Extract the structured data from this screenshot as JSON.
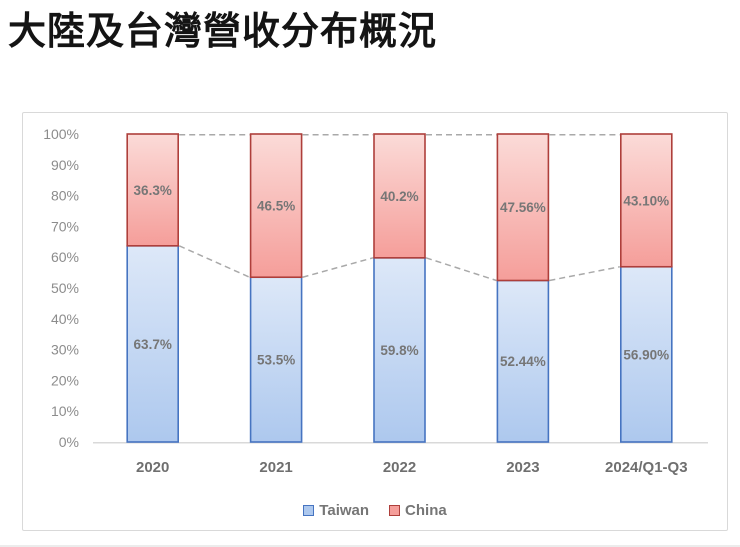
{
  "page": {
    "title": "大陸及台灣營收分布概況"
  },
  "chart_data": {
    "type": "bar",
    "subtype": "stacked-100-percent",
    "title": "大陸及台灣營收分布概況",
    "categories": [
      "2020",
      "2021",
      "2022",
      "2023",
      "2024/Q1-Q3"
    ],
    "series": [
      {
        "name": "Taiwan",
        "values": [
          63.7,
          53.5,
          59.8,
          52.44,
          56.9
        ],
        "labels": [
          "63.7%",
          "53.5%",
          "59.8%",
          "52.44%",
          "56.90%"
        ],
        "fill_top": "#dde8f8",
        "fill_bottom": "#adc8ee",
        "border_color": "#4674c1"
      },
      {
        "name": "China",
        "values": [
          36.3,
          46.5,
          40.2,
          47.56,
          43.1
        ],
        "labels": [
          "36.3%",
          "46.5%",
          "40.2%",
          "47.56%",
          "43.10%"
        ],
        "fill_top": "#fbdbd8",
        "fill_bottom": "#f59e9a",
        "border_color": "#ae3f3b"
      }
    ],
    "ylim": [
      0,
      100
    ],
    "y_tick_labels": [
      "0%",
      "10%",
      "20%",
      "30%",
      "40%",
      "50%",
      "60%",
      "70%",
      "80%",
      "90%",
      "100%"
    ],
    "grid": false,
    "legend": {
      "position": "bottom",
      "entries": [
        "Taiwan",
        "China"
      ]
    },
    "series_lines": {
      "show": true,
      "style": "dashed"
    }
  },
  "colors": {
    "data_label_text": "#767676",
    "axis_tick_text": "#8c8c8c",
    "category_text": "#6f6f6f",
    "axis_line": "#d9d9d9",
    "series_line": "#a9a9a9",
    "panel_border": "#d9d9d9",
    "title_text": "#141414"
  }
}
